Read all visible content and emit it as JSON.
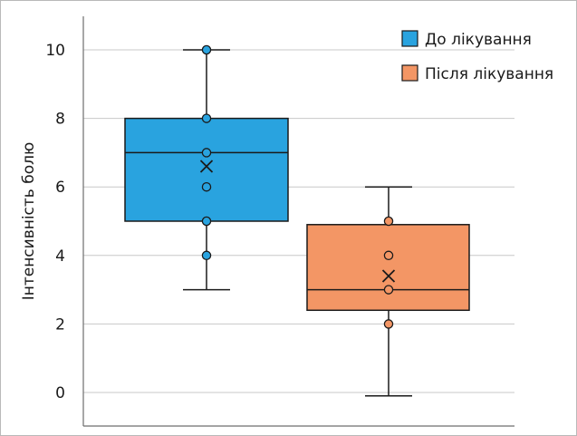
{
  "chart_data": {
    "type": "box",
    "title": "",
    "xlabel": "",
    "ylabel": "Інтенсивність болю",
    "ylim": [
      -0.9,
      11
    ],
    "yticks": [
      0,
      2,
      4,
      6,
      8,
      10
    ],
    "grid": true,
    "legend_position": "top-right",
    "series": [
      {
        "name": "До лікування",
        "color": "#29a3df",
        "min": 3,
        "q1": 5,
        "median": 7,
        "q3": 8,
        "max": 10,
        "mean": 6.6,
        "points": [
          10,
          8,
          7,
          6,
          5,
          4
        ]
      },
      {
        "name": "Після лікування",
        "color": "#f39665",
        "min": -0.1,
        "q1": 2.4,
        "median": 3,
        "q3": 4.9,
        "max": 6,
        "mean": 3.4,
        "points": [
          5,
          4,
          3,
          2
        ]
      }
    ]
  }
}
